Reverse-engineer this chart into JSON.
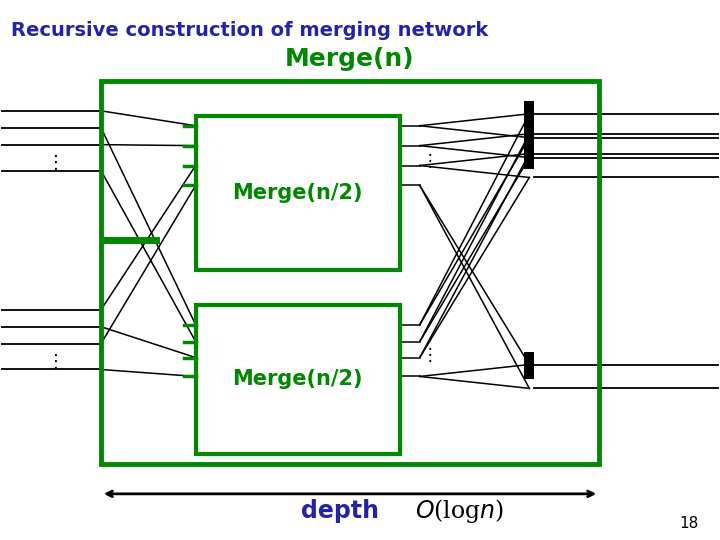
{
  "title": "Recursive construction of merging network",
  "title_color": "#2222aa",
  "title_fontsize": 14,
  "merge_n_label": "Merge(n)",
  "merge_n2_label": "Merge(n/2)",
  "green": "#008800",
  "blue": "#2222aa",
  "black": "#000000",
  "slide_number": "18",
  "depth_label": "depth",
  "complexity_label": "O(log n)",
  "bg_color": "#ffffff",
  "fig_w": 7.2,
  "fig_h": 5.4,
  "dpi": 100
}
